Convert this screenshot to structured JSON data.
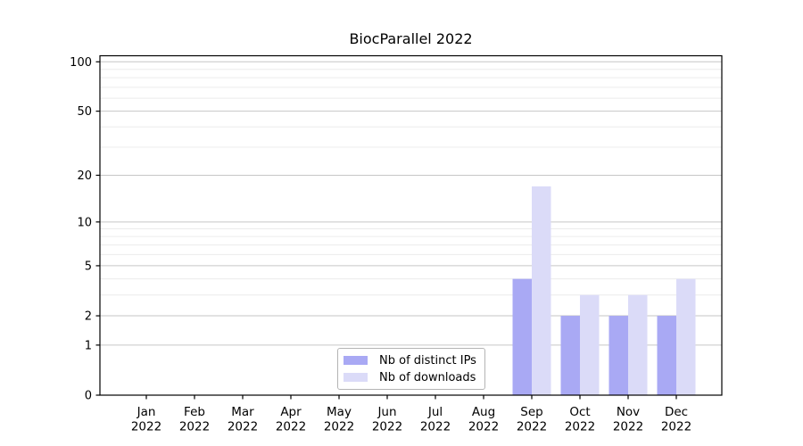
{
  "chart_data": {
    "type": "bar",
    "title": "BiocParallel 2022",
    "categories": [
      "Jan 2022",
      "Feb 2022",
      "Mar 2022",
      "Apr 2022",
      "May 2022",
      "Jun 2022",
      "Jul 2022",
      "Aug 2022",
      "Sep 2022",
      "Oct 2022",
      "Nov 2022",
      "Dec 2022"
    ],
    "series": [
      {
        "name": "Nb of distinct IPs",
        "color": "#a9a9f4",
        "values": [
          0,
          0,
          0,
          0,
          0,
          0,
          0,
          0,
          4,
          2,
          2,
          2
        ]
      },
      {
        "name": "Nb of downloads",
        "color": "#dbdbf8",
        "values": [
          0,
          0,
          0,
          0,
          0,
          0,
          0,
          0,
          17,
          3,
          3,
          4
        ]
      }
    ],
    "xlabel": "",
    "ylabel": "",
    "y_axis": {
      "scale": "log1p",
      "tick_labels": [
        0,
        1,
        2,
        5,
        10,
        20,
        50,
        100
      ],
      "minor_gridlines": [
        3,
        4,
        6,
        7,
        8,
        9,
        30,
        40,
        60,
        70,
        80,
        90
      ],
      "ylim": [
        0,
        108
      ]
    },
    "grid": {
      "enabled": true,
      "major_color": "#c6c6c6",
      "minor_color": "#ececec"
    },
    "legend": {
      "position": "bottom-center",
      "border": true
    },
    "colors": {
      "axis": "#000000",
      "background": "#ffffff"
    }
  }
}
